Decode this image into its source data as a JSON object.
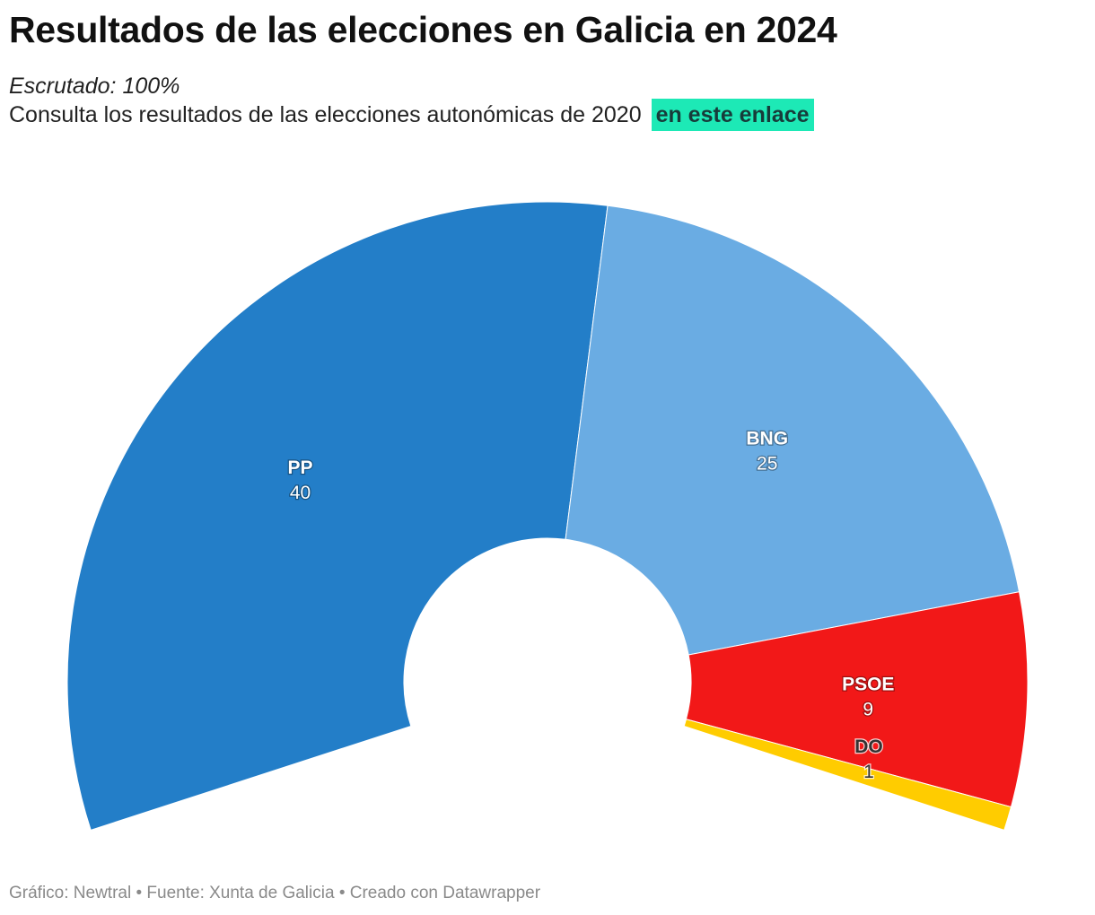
{
  "header": {
    "title": "Resultados de las elecciones en Galicia en 2024",
    "subtitle_italic": "Escrutado: 100%",
    "subtitle_text": "Consulta los resultados de las elecciones autonómicas de 2020",
    "link_text": "en este enlace",
    "link_color": "#1de9b6"
  },
  "chart_data": {
    "type": "pie",
    "subtype": "parliament-semicircle-donut",
    "total_seats": 75,
    "series": [
      {
        "name": "PP",
        "value": 40,
        "color": "#237ec8"
      },
      {
        "name": "BNG",
        "value": 25,
        "color": "#6aace3"
      },
      {
        "name": "PSOE",
        "value": 9,
        "color": "#f21818"
      },
      {
        "name": "DO",
        "value": 1,
        "color": "#ffcc00"
      }
    ]
  },
  "footer": {
    "credit": "Gráfico: Newtral • Fuente: Xunta de Galicia • Creado con Datawrapper"
  }
}
